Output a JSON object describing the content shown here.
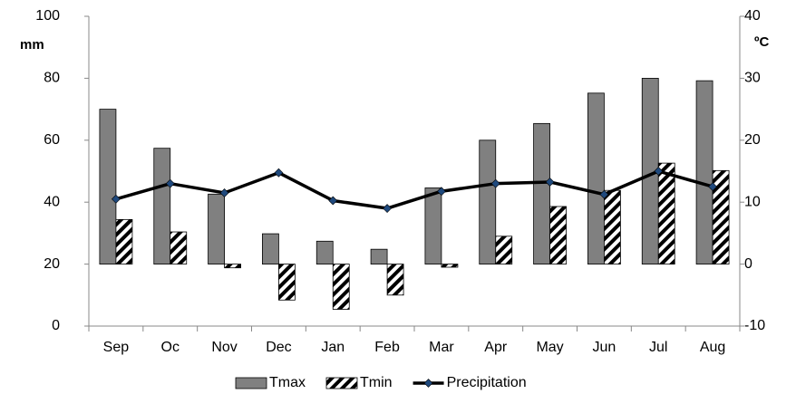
{
  "chart_data": {
    "type": "bar_line",
    "categories": [
      "Sep",
      "Oc",
      "Nov",
      "Dec",
      "Jan",
      "Feb",
      "Mar",
      "Apr",
      "May",
      "Jun",
      "Jul",
      "Aug"
    ],
    "ylabel": "mm",
    "y2label": "ºC",
    "ylim": [
      0,
      100
    ],
    "yticks": [
      0,
      20,
      40,
      60,
      80,
      100
    ],
    "y2lim": [
      -10,
      40
    ],
    "y2ticks": [
      -10,
      0,
      10,
      20,
      30,
      40
    ],
    "series": [
      {
        "name": "Tmax",
        "type": "bar",
        "axis": "y2",
        "color": "#808080",
        "values": [
          25,
          18.7,
          11.3,
          4.9,
          3.7,
          2.4,
          12.3,
          20,
          22.7,
          27.6,
          30,
          29.6
        ]
      },
      {
        "name": "Tmin",
        "type": "hatched_bar",
        "axis": "y2",
        "color": "#000000",
        "values": [
          7.2,
          5.2,
          -0.6,
          -5.8,
          -7.3,
          -5,
          -0.5,
          4.5,
          9.3,
          11.9,
          16.3,
          15.1
        ]
      },
      {
        "name": "Precipitation",
        "type": "line",
        "color": "#000000",
        "marker_color": "#1f497d",
        "values": [
          41,
          46,
          43,
          49.5,
          40.5,
          38,
          43.5,
          46,
          46.5,
          42.5,
          50,
          45
        ]
      }
    ]
  }
}
